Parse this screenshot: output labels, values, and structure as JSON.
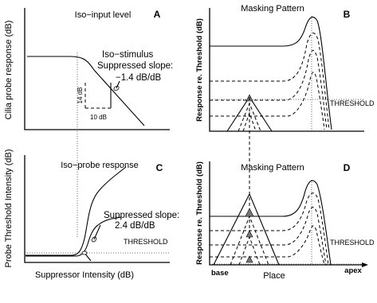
{
  "panels": {
    "A": {
      "letter": "A",
      "title": "Iso−input level",
      "ylabel": "Cilia probe response (dB)",
      "annotation_lines": [
        "Iso−stimulus",
        "Suppressed slope:",
        "−1.4 dB/dB"
      ],
      "dim_vertical": "14 dB",
      "dim_horizontal": "10 dB"
    },
    "B": {
      "letter": "B",
      "title": "Masking Pattern",
      "ylabel": "Response re. Threshold (dB)",
      "threshold_label": "THRESHOLD"
    },
    "C": {
      "letter": "C",
      "title": "Iso−probe response",
      "ylabel": "Probe Threshold Intensity (dB)",
      "xlabel": "Suppressor Intensity (dB)",
      "annotation_lines": [
        "Suppressed slope:",
        "2.4 dB/dB"
      ],
      "threshold_label": "THRESHOLD"
    },
    "D": {
      "letter": "D",
      "title": "Masking Pattern",
      "ylabel": "Response re. Threshold (dB)",
      "xlabel": "Place",
      "x_left": "base",
      "x_right": "apex",
      "threshold_label": "THRESHOLD"
    }
  }
}
